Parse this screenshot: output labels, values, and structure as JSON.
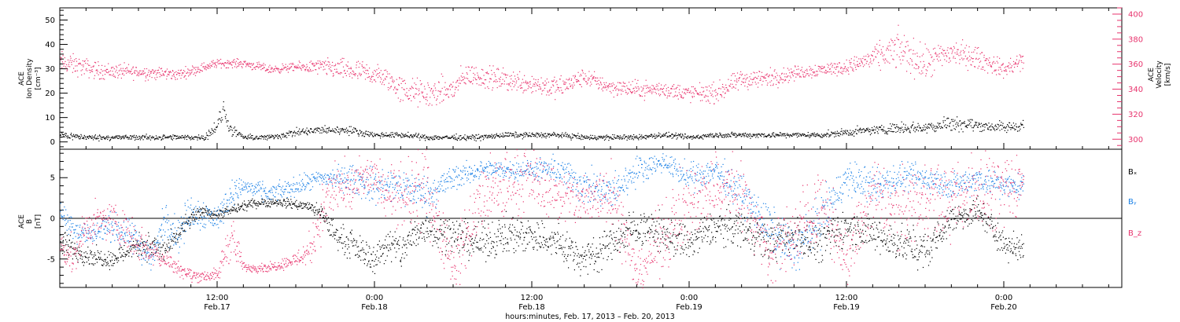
{
  "chart_data": [
    {
      "type": "scatter",
      "panel": "top",
      "ylabel_left": [
        "ACE",
        "Ion Density",
        "[cm⁻³]"
      ],
      "ylabel_right": [
        "ACE",
        "Velocity",
        "[km/s]"
      ],
      "ylim_left": [
        -3,
        55
      ],
      "yticks_left": [
        0,
        10,
        20,
        30,
        40,
        50
      ],
      "ylim_right": [
        292,
        405
      ],
      "yticks_right": [
        300,
        320,
        340,
        360,
        380,
        400
      ],
      "series": [
        {
          "name": "Velocity",
          "axis": "right",
          "color": "#e8336d",
          "x_hours": [
            0,
            3,
            6,
            9,
            12,
            14,
            16,
            18,
            20,
            22,
            24,
            25,
            26,
            28,
            30,
            31,
            33,
            36,
            38,
            40,
            42,
            44,
            46,
            48,
            50,
            52,
            54,
            56,
            58,
            60,
            62,
            64,
            66,
            68,
            70,
            72,
            73.5
          ],
          "y": [
            362,
            355,
            354,
            352,
            361,
            361,
            356,
            358,
            358,
            355,
            352,
            348,
            340,
            336,
            340,
            352,
            349,
            345,
            341,
            350,
            342,
            340,
            340,
            337,
            337,
            348,
            349,
            353,
            356,
            358,
            365,
            372,
            360,
            370,
            365,
            356,
            363
          ],
          "spread": [
            8,
            6,
            5,
            4,
            3,
            3,
            3,
            3,
            6,
            8,
            8,
            8,
            10,
            10,
            10,
            8,
            8,
            8,
            8,
            6,
            6,
            6,
            6,
            6,
            7,
            7,
            7,
            5,
            5,
            5,
            8,
            14,
            12,
            10,
            8,
            6,
            8
          ]
        },
        {
          "name": "Ion Density",
          "axis": "left",
          "color": "#000000",
          "x_hours": [
            0,
            2,
            4,
            6,
            8,
            10,
            11,
            12,
            12.5,
            13,
            14,
            16,
            18,
            20,
            22,
            24,
            26,
            28,
            30,
            32,
            34,
            36,
            38,
            40,
            42,
            44,
            46,
            48,
            50,
            52,
            54,
            56,
            58,
            60,
            62,
            64,
            66,
            68,
            70,
            72,
            73.5
          ],
          "y": [
            3,
            2,
            2,
            2,
            2,
            2,
            2,
            7,
            13,
            5,
            2,
            2,
            4,
            5,
            5,
            3,
            3,
            2,
            2,
            2,
            3,
            3,
            3,
            2,
            2,
            2,
            3,
            2,
            3,
            3,
            3,
            3,
            3,
            4,
            5,
            6,
            6,
            8,
            7,
            6,
            7
          ],
          "spread": [
            1.5,
            1,
            1,
            1,
            1,
            1,
            1,
            3,
            4,
            2,
            1,
            1,
            1.5,
            1.5,
            1.5,
            1,
            1,
            1,
            1,
            1,
            1,
            1,
            1,
            1,
            1,
            1,
            1,
            1,
            1,
            1,
            1,
            1,
            1,
            1.5,
            1.5,
            2,
            2,
            3,
            2,
            2,
            2
          ]
        }
      ]
    },
    {
      "type": "scatter",
      "panel": "bottom",
      "ylabel_left": [
        "ACE",
        "B",
        "[nT]"
      ],
      "ylim": [
        -8.5,
        8.5
      ],
      "yticks": [
        -5,
        0,
        5
      ],
      "zero_line": true,
      "legend": [
        "Bₓ",
        "Bᵧ",
        "B_z"
      ],
      "series": [
        {
          "name": "Bₓ",
          "color": "#000000",
          "x_hours": [
            0,
            2,
            4,
            6,
            8,
            9,
            10,
            11,
            12,
            13,
            15,
            17,
            19,
            20,
            21,
            22,
            24,
            25,
            26,
            27,
            28,
            30,
            32,
            34,
            36,
            38,
            40,
            42,
            44,
            46,
            48,
            50,
            52,
            54,
            56,
            58,
            60,
            62,
            64,
            66,
            68,
            70,
            72,
            73.5
          ],
          "y": [
            -3,
            -4.5,
            -5,
            -3,
            -4,
            -2,
            0,
            1,
            0.5,
            1,
            2,
            2,
            1.5,
            0.5,
            -2,
            -3,
            -5,
            -3,
            -4,
            -2,
            -1,
            -2,
            -3,
            -2,
            -2,
            -3,
            -5,
            -3,
            -1,
            -2,
            -3,
            -1,
            -1,
            -3,
            -2,
            -3,
            -1,
            -2,
            -3,
            -4,
            0,
            1,
            -3,
            -4
          ],
          "spread": [
            1.5,
            1,
            1,
            1.5,
            1.5,
            1,
            1,
            0.5,
            0.5,
            0.5,
            0.5,
            0.5,
            0.5,
            1,
            1.5,
            1.5,
            1.5,
            2,
            2,
            2,
            2,
            2,
            2,
            2,
            2,
            2,
            2,
            2,
            2,
            2,
            2,
            2,
            2,
            2,
            2,
            2,
            2,
            2,
            2,
            2,
            1.5,
            1.5,
            1.5,
            1.5
          ]
        },
        {
          "name": "Bᵧ",
          "color": "#1a80e6",
          "x_hours": [
            0,
            1,
            2,
            4,
            6,
            7,
            8,
            9,
            10,
            12,
            13,
            14,
            16,
            18,
            20,
            22,
            24,
            26,
            28,
            30,
            32,
            34,
            36,
            38,
            40,
            42,
            44,
            46,
            48,
            50,
            52,
            54,
            56,
            58,
            60,
            62,
            64,
            66,
            68,
            70,
            72,
            73.5
          ],
          "y": [
            1,
            -1,
            -2,
            -1,
            -3,
            -5,
            0,
            -2,
            1,
            0,
            3,
            4,
            3,
            4,
            5,
            5,
            4,
            4,
            3,
            5,
            6,
            6,
            6,
            6,
            4,
            3,
            6,
            7,
            5,
            6,
            3,
            -1,
            -4,
            0,
            5,
            4,
            5,
            5,
            4,
            5,
            4,
            4
          ],
          "spread": [
            1,
            1.5,
            1.5,
            1.5,
            2,
            1.5,
            2,
            2,
            2,
            1.5,
            1.5,
            1,
            1,
            1,
            1,
            1.5,
            2,
            2,
            2,
            1.5,
            1,
            1,
            1,
            1.5,
            2,
            2,
            1.5,
            1,
            1.5,
            1.5,
            2,
            2.5,
            2.5,
            2.5,
            2,
            2,
            1.5,
            1.5,
            1.5,
            1.5,
            1.5,
            1.5
          ]
        },
        {
          "name": "B_z",
          "color": "#e8336d",
          "x_hours": [
            0,
            1,
            2,
            4,
            6,
            8,
            10,
            12,
            13,
            14,
            16,
            18,
            19,
            20,
            21,
            22,
            23,
            24,
            26,
            28,
            30,
            32,
            34,
            36,
            38,
            40,
            42,
            44,
            46,
            48,
            50,
            52,
            54,
            56,
            58,
            60,
            62,
            64,
            66,
            68,
            70,
            72,
            73.5
          ],
          "y": [
            -3,
            -5,
            -1,
            0,
            -3,
            -5,
            -7,
            -7,
            -2,
            -6,
            -6,
            -5,
            -4,
            1,
            4,
            3,
            5,
            5,
            2,
            4,
            -6,
            2,
            4,
            5,
            3,
            2,
            4,
            -7,
            -2,
            2,
            4,
            3,
            -4,
            -2,
            2,
            -5,
            3,
            1,
            3,
            2,
            4,
            3,
            5
          ],
          "spread": [
            1.5,
            2,
            2,
            2,
            2,
            1,
            0.7,
            0.7,
            3,
            0.5,
            0.5,
            0.8,
            2,
            3,
            3,
            3,
            2,
            2,
            4,
            4,
            3,
            4,
            4,
            3,
            3,
            3,
            4,
            2,
            4,
            4,
            4,
            4,
            3,
            4,
            4,
            3,
            4,
            4,
            4,
            4,
            4,
            4,
            3
          ]
        }
      ]
    }
  ],
  "x_axis": {
    "range_hours": [
      0,
      81
    ],
    "ticks": [
      {
        "hour": 12,
        "time": "12:00",
        "date": "Feb.17"
      },
      {
        "hour": 24,
        "time": "0:00",
        "date": "Feb.18"
      },
      {
        "hour": 36,
        "time": "12:00",
        "date": "Feb.18"
      },
      {
        "hour": 48,
        "time": "0:00",
        "date": "Feb.19"
      },
      {
        "hour": 60,
        "time": "12:00",
        "date": "Feb.19"
      },
      {
        "hour": 72,
        "time": "0:00",
        "date": "Feb.20"
      }
    ],
    "title": "hours:minutes, Feb. 17, 2013 – Feb. 20, 2013"
  },
  "colors": {
    "density": "#000000",
    "velocity": "#e8336d",
    "bx": "#000000",
    "by": "#1a80e6",
    "bz": "#e8336d"
  }
}
